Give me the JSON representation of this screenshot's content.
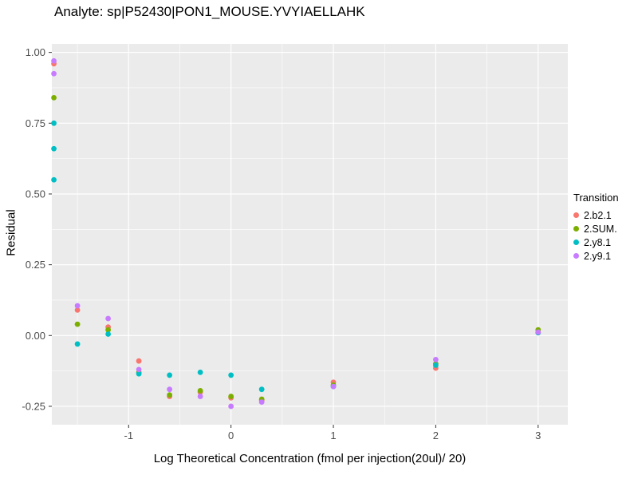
{
  "chart_data": {
    "type": "scatter",
    "title": "Analyte: sp|P52430|PON1_MOUSE.YVYIAELLAHK",
    "xlabel": "Log Theoretical Concentration (fmol per injection(20ul)/ 20)",
    "ylabel": "Residual",
    "legend_title": "Transition",
    "legend_position": "right",
    "grid": true,
    "panel_background": "#EBEBEB",
    "gridline_color": "#FFFFFF",
    "tick_color": "#333333",
    "tick_label_color": "#4D4D4D",
    "xlim": [
      -1.75,
      3.29
    ],
    "ylim": [
      -0.315,
      1.03
    ],
    "x_ticks": [
      -1,
      0,
      1,
      2,
      3
    ],
    "y_ticks": [
      -0.25,
      0,
      0.25,
      0.5,
      0.75,
      1
    ],
    "series": [
      {
        "name": "2.b2.1",
        "color": "#F8766D",
        "points": [
          [
            -1.73,
            0.96
          ],
          [
            -1.5,
            0.09
          ],
          [
            -1.2,
            0.03
          ],
          [
            -0.9,
            -0.09
          ],
          [
            -0.6,
            -0.215
          ],
          [
            -0.3,
            -0.2
          ],
          [
            0,
            -0.22
          ],
          [
            0.3,
            -0.23
          ],
          [
            1,
            -0.165
          ],
          [
            2,
            -0.115
          ],
          [
            3,
            0.01
          ]
        ]
      },
      {
        "name": "2.SUM.",
        "color": "#7CAE00",
        "points": [
          [
            -1.73,
            0.84
          ],
          [
            -1.5,
            0.04
          ],
          [
            -1.2,
            0.02
          ],
          [
            -0.9,
            -0.13
          ],
          [
            -0.6,
            -0.21
          ],
          [
            -0.3,
            -0.195
          ],
          [
            0,
            -0.215
          ],
          [
            0.3,
            -0.225
          ],
          [
            1,
            -0.175
          ],
          [
            2,
            -0.1
          ],
          [
            3,
            0.02
          ]
        ]
      },
      {
        "name": "2.y8.1",
        "color": "#00BFC4",
        "points": [
          [
            -1.73,
            0.75
          ],
          [
            -1.73,
            0.66
          ],
          [
            -1.73,
            0.55
          ],
          [
            -1.5,
            -0.03
          ],
          [
            -1.2,
            0.005
          ],
          [
            -0.9,
            -0.135
          ],
          [
            -0.6,
            -0.14
          ],
          [
            -0.3,
            -0.13
          ],
          [
            0,
            -0.14
          ],
          [
            0.3,
            -0.19
          ],
          [
            1,
            -0.18
          ],
          [
            2,
            -0.105
          ],
          [
            3,
            0.01
          ]
        ]
      },
      {
        "name": "2.y9.1",
        "color": "#C77CFF",
        "points": [
          [
            -1.73,
            0.97
          ],
          [
            -1.73,
            0.925
          ],
          [
            -1.5,
            0.105
          ],
          [
            -1.2,
            0.06
          ],
          [
            -0.9,
            -0.12
          ],
          [
            -0.6,
            -0.19
          ],
          [
            -0.3,
            -0.215
          ],
          [
            0,
            -0.25
          ],
          [
            0.3,
            -0.235
          ],
          [
            1,
            -0.18
          ],
          [
            2,
            -0.085
          ],
          [
            3,
            0.012
          ]
        ]
      }
    ]
  }
}
